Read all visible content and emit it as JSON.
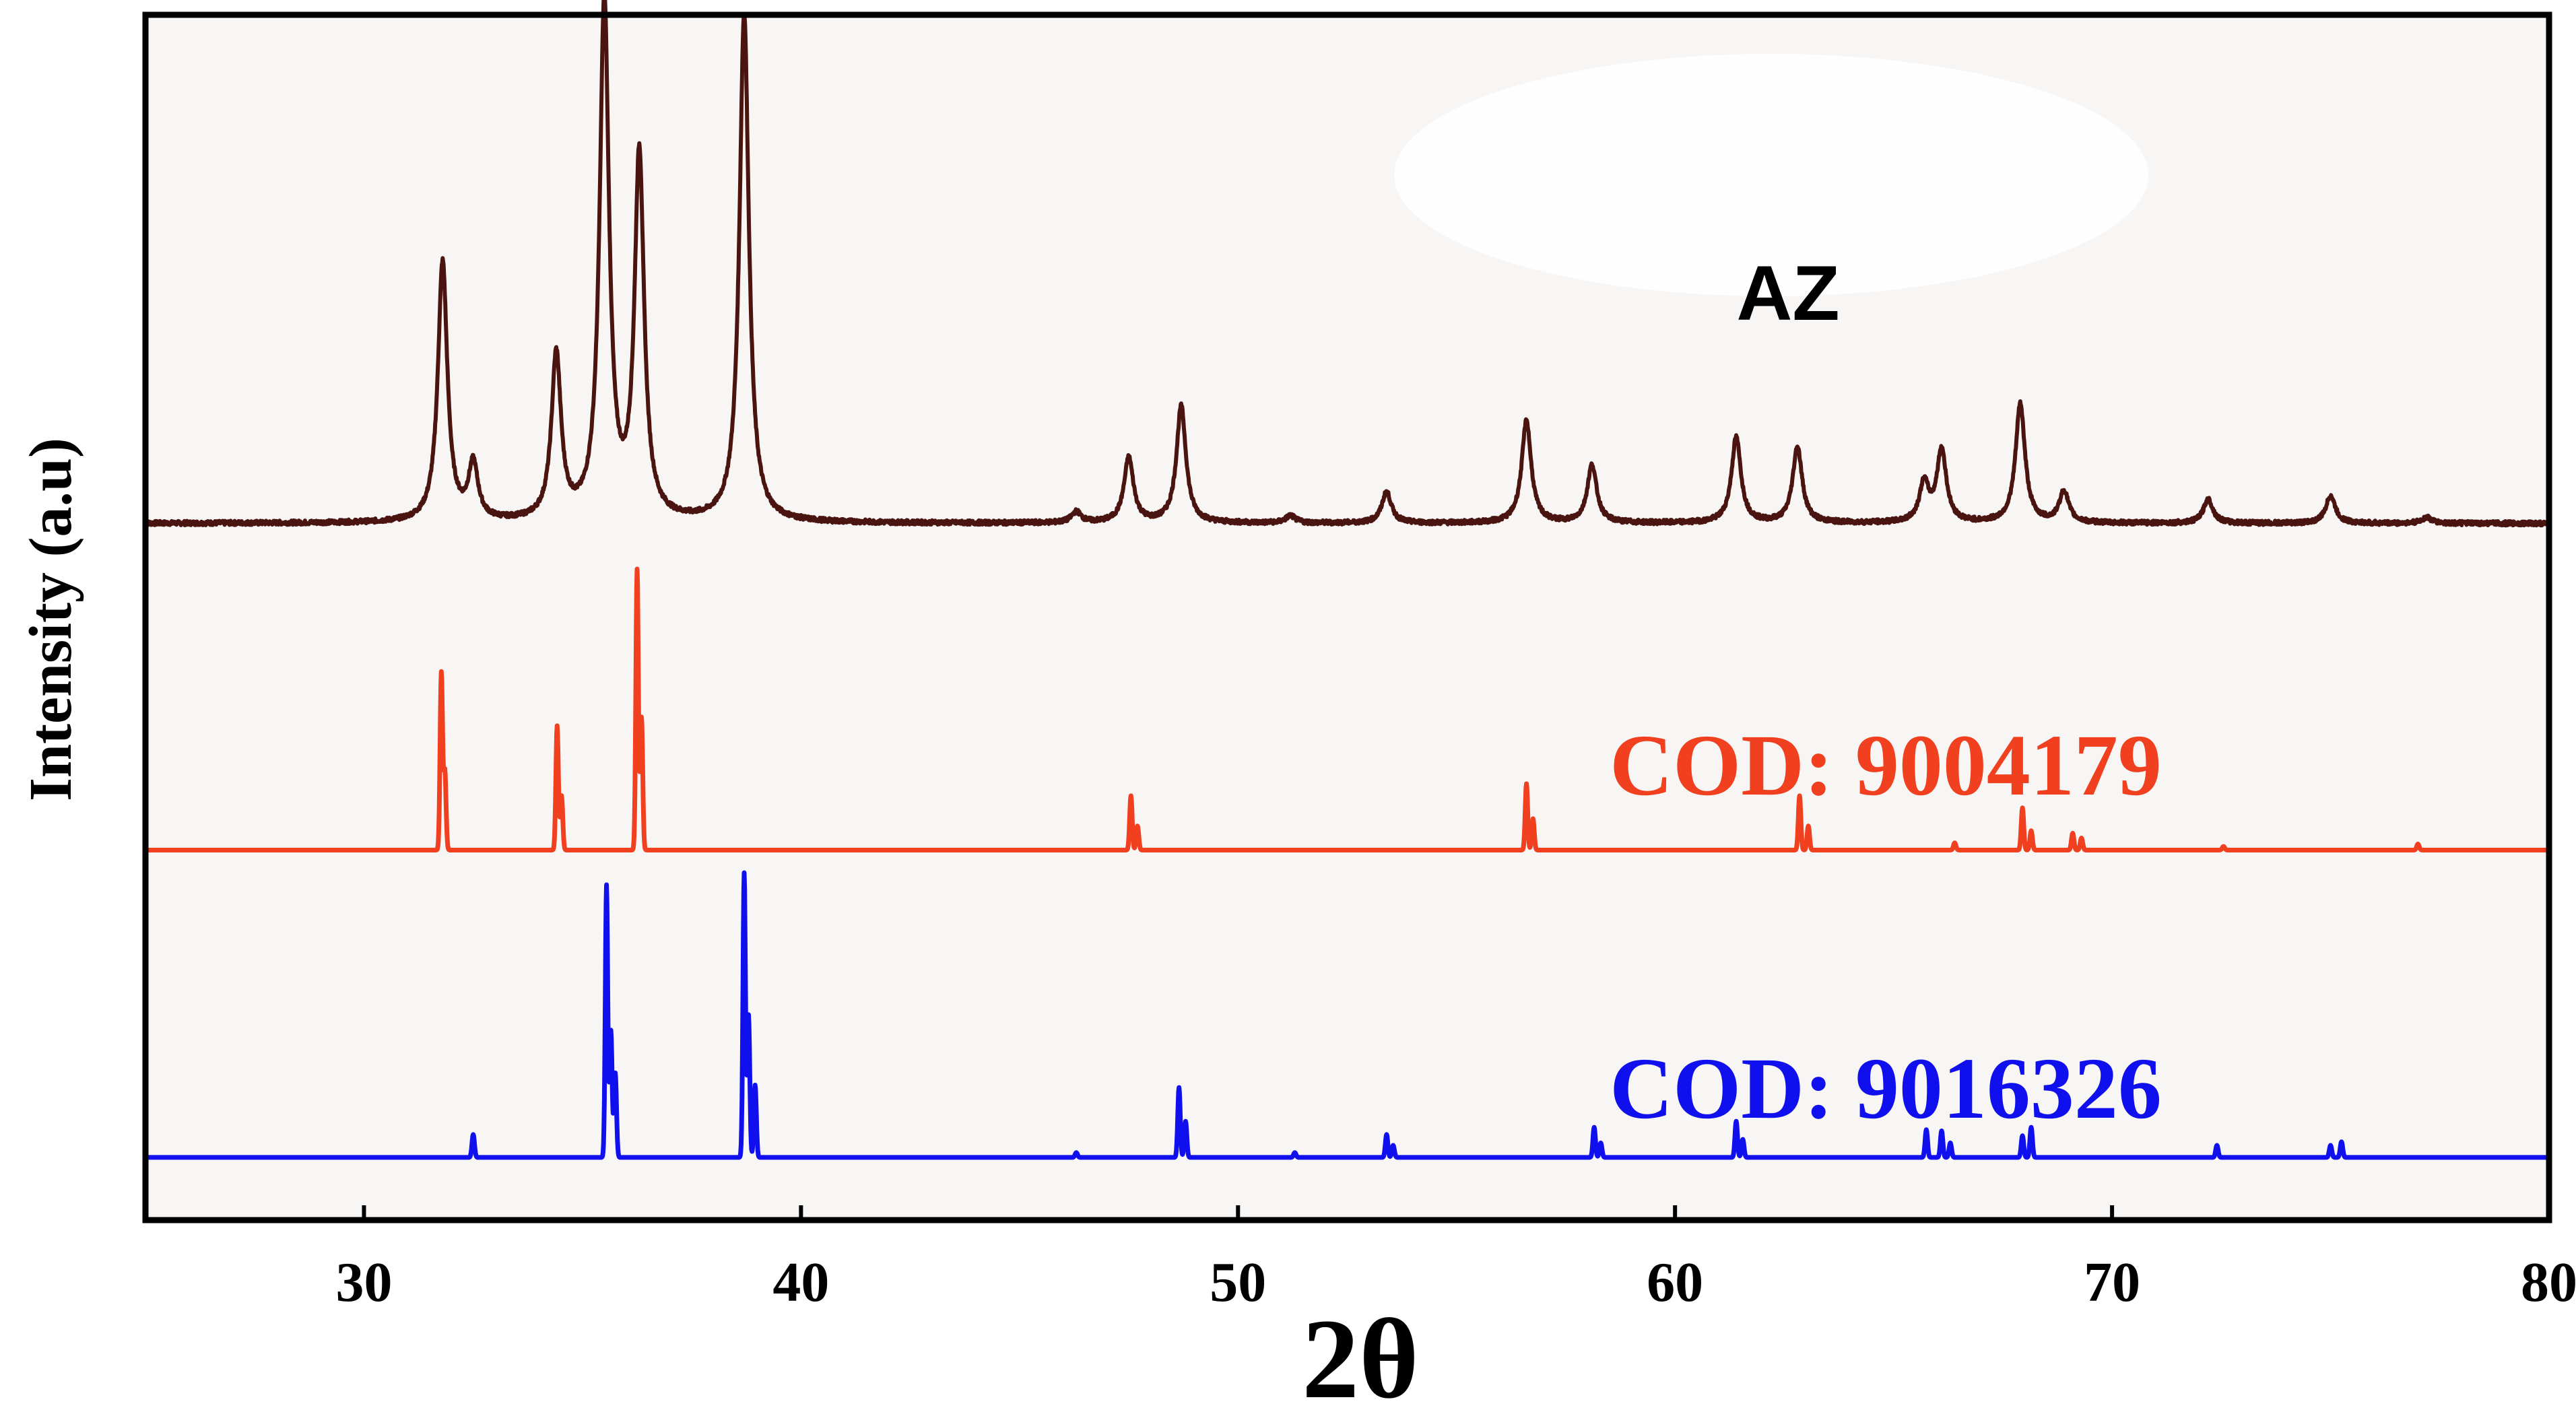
{
  "chart_data": {
    "type": "line",
    "title": "",
    "xlabel": "2θ",
    "ylabel": "Intensity (a.u)",
    "xlim": [
      25,
      80
    ],
    "xticks": [
      30,
      40,
      50,
      60,
      70,
      80
    ],
    "ylim": [
      0,
      1
    ],
    "grid": false,
    "series": [
      {
        "name": "AZ",
        "color": "#4a1510",
        "baseline": 0.578,
        "peaks": [
          {
            "x": 31.8,
            "y": 0.216
          },
          {
            "x": 32.5,
            "y": 0.046
          },
          {
            "x": 34.4,
            "y": 0.137
          },
          {
            "x": 35.5,
            "y": 0.43
          },
          {
            "x": 36.3,
            "y": 0.302
          },
          {
            "x": 38.7,
            "y": 0.422
          },
          {
            "x": 46.3,
            "y": 0.009
          },
          {
            "x": 47.5,
            "y": 0.054
          },
          {
            "x": 48.7,
            "y": 0.097
          },
          {
            "x": 51.2,
            "y": 0.006
          },
          {
            "x": 53.4,
            "y": 0.026
          },
          {
            "x": 56.6,
            "y": 0.085
          },
          {
            "x": 58.1,
            "y": 0.048
          },
          {
            "x": 61.4,
            "y": 0.071
          },
          {
            "x": 62.8,
            "y": 0.063
          },
          {
            "x": 65.7,
            "y": 0.032
          },
          {
            "x": 66.1,
            "y": 0.06
          },
          {
            "x": 67.9,
            "y": 0.099
          },
          {
            "x": 68.9,
            "y": 0.026
          },
          {
            "x": 72.2,
            "y": 0.02
          },
          {
            "x": 75.0,
            "y": 0.023
          },
          {
            "x": 77.2,
            "y": 0.005
          }
        ]
      },
      {
        "name": "COD: 9004179",
        "color": "#f0401f",
        "baseline": 0.307,
        "peaks": [
          {
            "x": 31.77,
            "y": 0.147
          },
          {
            "x": 31.85,
            "y": 0.065
          },
          {
            "x": 34.42,
            "y": 0.103
          },
          {
            "x": 34.52,
            "y": 0.045
          },
          {
            "x": 36.25,
            "y": 0.233
          },
          {
            "x": 36.35,
            "y": 0.11
          },
          {
            "x": 47.55,
            "y": 0.045
          },
          {
            "x": 47.7,
            "y": 0.02
          },
          {
            "x": 56.6,
            "y": 0.055
          },
          {
            "x": 56.75,
            "y": 0.026
          },
          {
            "x": 62.85,
            "y": 0.045
          },
          {
            "x": 63.05,
            "y": 0.02
          },
          {
            "x": 66.4,
            "y": 0.006
          },
          {
            "x": 67.95,
            "y": 0.035
          },
          {
            "x": 68.15,
            "y": 0.016
          },
          {
            "x": 69.1,
            "y": 0.014
          },
          {
            "x": 69.3,
            "y": 0.01
          },
          {
            "x": 72.55,
            "y": 0.003
          },
          {
            "x": 77.0,
            "y": 0.005
          }
        ]
      },
      {
        "name": "COD: 9016326",
        "color": "#1010ee",
        "baseline": 0.052,
        "peaks": [
          {
            "x": 32.5,
            "y": 0.019
          },
          {
            "x": 35.55,
            "y": 0.226
          },
          {
            "x": 35.65,
            "y": 0.105
          },
          {
            "x": 35.75,
            "y": 0.07
          },
          {
            "x": 38.7,
            "y": 0.236
          },
          {
            "x": 38.8,
            "y": 0.118
          },
          {
            "x": 38.95,
            "y": 0.06
          },
          {
            "x": 46.3,
            "y": 0.004
          },
          {
            "x": 48.65,
            "y": 0.058
          },
          {
            "x": 48.8,
            "y": 0.03
          },
          {
            "x": 51.3,
            "y": 0.004
          },
          {
            "x": 53.4,
            "y": 0.019
          },
          {
            "x": 53.55,
            "y": 0.01
          },
          {
            "x": 58.15,
            "y": 0.025
          },
          {
            "x": 58.3,
            "y": 0.012
          },
          {
            "x": 61.4,
            "y": 0.03
          },
          {
            "x": 61.55,
            "y": 0.015
          },
          {
            "x": 65.75,
            "y": 0.023
          },
          {
            "x": 66.1,
            "y": 0.022
          },
          {
            "x": 66.3,
            "y": 0.012
          },
          {
            "x": 67.95,
            "y": 0.018
          },
          {
            "x": 68.15,
            "y": 0.025
          },
          {
            "x": 72.4,
            "y": 0.01
          },
          {
            "x": 75.0,
            "y": 0.01
          },
          {
            "x": 75.25,
            "y": 0.013
          }
        ]
      }
    ],
    "annotations": [
      "AZ",
      "COD: 9004179",
      "COD: 9016326"
    ]
  }
}
